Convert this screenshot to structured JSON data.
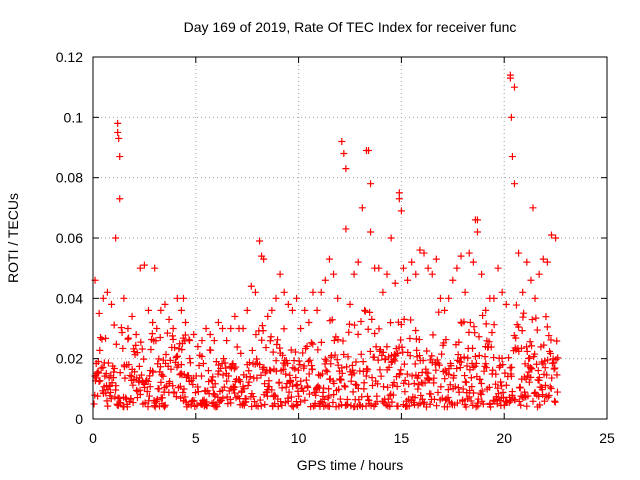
{
  "chart_data": {
    "type": "scatter",
    "title": "Day 169 of 2019, Rate Of TEC Index for receiver func",
    "xlabel": "GPS time / hours",
    "ylabel": "ROTI / TECUs",
    "xlim": [
      0,
      25
    ],
    "ylim": [
      0,
      0.12
    ],
    "x_ticks": [
      0,
      5,
      10,
      15,
      20,
      25
    ],
    "x_tick_labels": [
      "0",
      "5",
      "10",
      "15",
      "20",
      "25"
    ],
    "y_ticks": [
      0,
      0.02,
      0.04,
      0.06,
      0.08,
      0.1,
      0.12
    ],
    "y_tick_labels": [
      "0",
      "0.02",
      "0.04",
      "0.06",
      "0.08",
      "0.1",
      "0.12"
    ],
    "grid": true,
    "marker": "+",
    "marker_color": "#ff0000",
    "series": [
      {
        "name": "ROTI",
        "x": [
          0.1,
          0.3,
          0.5,
          0.7,
          0.9,
          1.1,
          1.2,
          1.3,
          1.5,
          1.7,
          1.9,
          2.1,
          2.3,
          2.5,
          2.7,
          2.9,
          3.1,
          3.3,
          3.5,
          3.7,
          3.9,
          4.1,
          4.3,
          4.5,
          4.7,
          4.9,
          5.1,
          5.3,
          5.5,
          5.7,
          5.9,
          6.1,
          6.3,
          6.5,
          6.7,
          6.9,
          7.1,
          7.3,
          7.5,
          7.7,
          7.9,
          8.1,
          8.3,
          8.5,
          8.7,
          8.9,
          9.1,
          9.3,
          9.5,
          9.7,
          9.9,
          10.1,
          10.3,
          10.5,
          10.7,
          10.9,
          11.1,
          11.3,
          11.5,
          11.7,
          11.9,
          12.1,
          12.3,
          12.5,
          12.7,
          12.9,
          13.1,
          13.3,
          13.5,
          13.7,
          13.9,
          14.1,
          14.3,
          14.5,
          14.7,
          14.9,
          15.1,
          15.3,
          15.5,
          15.7,
          15.9,
          16.1,
          16.3,
          16.5,
          16.7,
          16.9,
          17.1,
          17.3,
          17.5,
          17.7,
          17.9,
          18.1,
          18.3,
          18.5,
          18.7,
          18.9,
          19.1,
          19.3,
          19.5,
          19.7,
          19.9,
          20.1,
          20.3,
          20.5,
          20.7,
          20.9,
          21.1,
          21.3,
          21.5,
          21.7,
          21.9,
          22.1,
          22.3,
          22.5,
          1.2,
          1.25,
          1.3,
          12.2,
          12.3,
          13.4,
          13.5,
          14.9,
          15.0,
          18.6,
          18.7,
          20.3,
          20.35,
          20.4,
          20.5,
          8.2,
          21.4,
          3.0,
          4.4
        ],
        "y": [
          0.046,
          0.035,
          0.04,
          0.042,
          0.038,
          0.06,
          0.098,
          0.087,
          0.04,
          0.03,
          0.034,
          0.028,
          0.05,
          0.051,
          0.036,
          0.032,
          0.03,
          0.036,
          0.038,
          0.033,
          0.03,
          0.04,
          0.036,
          0.032,
          0.026,
          0.028,
          0.024,
          0.026,
          0.03,
          0.028,
          0.026,
          0.032,
          0.03,
          0.026,
          0.03,
          0.034,
          0.03,
          0.03,
          0.036,
          0.044,
          0.042,
          0.059,
          0.053,
          0.034,
          0.036,
          0.04,
          0.048,
          0.042,
          0.038,
          0.036,
          0.04,
          0.03,
          0.036,
          0.032,
          0.042,
          0.036,
          0.042,
          0.046,
          0.053,
          0.048,
          0.04,
          0.092,
          0.063,
          0.038,
          0.048,
          0.052,
          0.07,
          0.089,
          0.062,
          0.05,
          0.05,
          0.042,
          0.048,
          0.06,
          0.045,
          0.075,
          0.05,
          0.046,
          0.052,
          0.048,
          0.056,
          0.055,
          0.05,
          0.048,
          0.053,
          0.04,
          0.036,
          0.04,
          0.046,
          0.05,
          0.054,
          0.042,
          0.055,
          0.052,
          0.066,
          0.048,
          0.036,
          0.04,
          0.04,
          0.05,
          0.042,
          0.038,
          0.114,
          0.11,
          0.055,
          0.042,
          0.052,
          0.046,
          0.04,
          0.048,
          0.053,
          0.052,
          0.061,
          0.06,
          0.095,
          0.093,
          0.073,
          0.088,
          0.083,
          0.089,
          0.078,
          0.073,
          0.069,
          0.066,
          0.062,
          0.113,
          0.1,
          0.087,
          0.078,
          0.054,
          0.07,
          0.05,
          0.04
        ]
      }
    ],
    "dense_band_min": [
      0.005,
      0.005,
      0.004,
      0.004,
      0.004,
      0.004,
      0.004,
      0.004,
      0.004,
      0.004,
      0.004,
      0.004,
      0.004,
      0.004,
      0.004,
      0.004,
      0.004,
      0.004,
      0.004,
      0.004,
      0.004,
      0.004,
      0.004,
      0.004,
      0.004,
      0.004,
      0.004,
      0.004,
      0.004,
      0.004,
      0.004,
      0.004,
      0.004,
      0.004,
      0.004,
      0.004,
      0.004,
      0.004,
      0.004,
      0.004,
      0.004,
      0.004,
      0.004,
      0.004,
      0.004,
      0.004,
      0.004,
      0.004,
      0.004,
      0.004,
      0.004,
      0.004,
      0.004,
      0.004,
      0.004,
      0.004,
      0.004,
      0.004,
      0.004,
      0.004,
      0.004,
      0.004,
      0.004,
      0.004,
      0.004,
      0.004,
      0.004,
      0.004,
      0.004,
      0.004,
      0.004,
      0.004,
      0.004,
      0.004,
      0.004,
      0.004,
      0.004,
      0.004,
      0.004,
      0.004,
      0.004,
      0.004,
      0.004,
      0.004,
      0.004,
      0.004,
      0.004,
      0.004,
      0.004,
      0.004,
      0.004,
      0.004,
      0.004,
      0.004,
      0.004,
      0.004,
      0.004,
      0.004,
      0.004,
      0.004,
      0.004,
      0.004,
      0.004,
      0.004,
      0.004,
      0.004,
      0.004,
      0.004,
      0.004,
      0.004,
      0.004,
      0.004,
      0.004
    ],
    "dense_band_max": [
      0.026,
      0.03,
      0.03,
      0.032,
      0.032,
      0.034,
      0.036,
      0.034,
      0.03,
      0.026,
      0.026,
      0.026,
      0.028,
      0.03,
      0.03,
      0.028,
      0.028,
      0.03,
      0.03,
      0.028,
      0.028,
      0.03,
      0.03,
      0.028,
      0.024,
      0.024,
      0.022,
      0.022,
      0.024,
      0.024,
      0.024,
      0.024,
      0.024,
      0.022,
      0.024,
      0.026,
      0.026,
      0.026,
      0.028,
      0.03,
      0.03,
      0.032,
      0.03,
      0.028,
      0.028,
      0.03,
      0.03,
      0.032,
      0.03,
      0.028,
      0.03,
      0.026,
      0.028,
      0.028,
      0.03,
      0.03,
      0.032,
      0.034,
      0.036,
      0.034,
      0.032,
      0.036,
      0.034,
      0.032,
      0.034,
      0.036,
      0.038,
      0.04,
      0.036,
      0.034,
      0.034,
      0.032,
      0.034,
      0.036,
      0.034,
      0.036,
      0.036,
      0.034,
      0.036,
      0.036,
      0.038,
      0.038,
      0.036,
      0.034,
      0.036,
      0.032,
      0.03,
      0.032,
      0.034,
      0.034,
      0.036,
      0.032,
      0.034,
      0.036,
      0.036,
      0.034,
      0.03,
      0.032,
      0.032,
      0.034,
      0.032,
      0.03,
      0.04,
      0.04,
      0.036,
      0.032,
      0.034,
      0.034,
      0.032,
      0.034,
      0.036,
      0.036,
      0.036,
      0.036
    ]
  }
}
